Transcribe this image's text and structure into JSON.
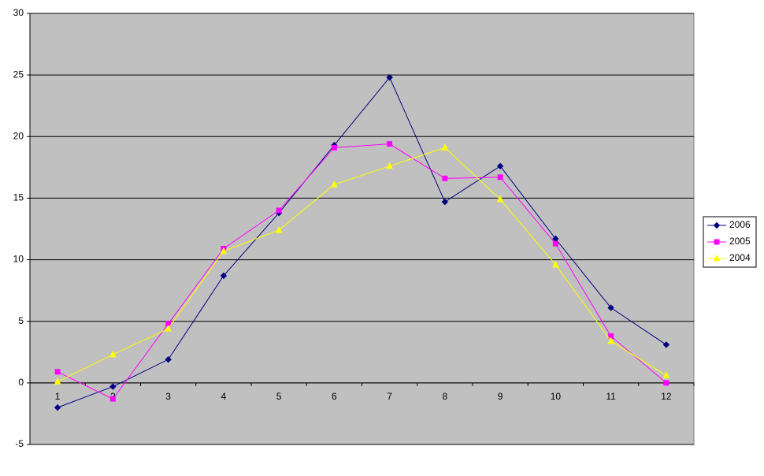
{
  "chart_data": {
    "type": "line",
    "categories": [
      "1",
      "2",
      "3",
      "4",
      "5",
      "6",
      "7",
      "8",
      "9",
      "10",
      "11",
      "12"
    ],
    "series": [
      {
        "name": "2006",
        "color": "#000080",
        "marker": "diamond",
        "values": [
          -2.0,
          -0.3,
          1.9,
          8.7,
          13.8,
          19.3,
          24.8,
          14.7,
          17.6,
          11.7,
          6.1,
          3.1
        ]
      },
      {
        "name": "2005",
        "color": "#ff00ff",
        "marker": "square",
        "values": [
          0.9,
          -1.3,
          4.8,
          10.9,
          14.0,
          19.1,
          19.4,
          16.6,
          16.7,
          11.3,
          3.8,
          0.0
        ]
      },
      {
        "name": "2004",
        "color": "#ffff00",
        "marker": "triangle",
        "values": [
          0.1,
          2.3,
          4.4,
          10.7,
          12.4,
          16.1,
          17.6,
          19.1,
          14.9,
          9.6,
          3.4,
          0.6
        ]
      }
    ],
    "ylim": [
      -5,
      30
    ],
    "yticks": [
      -5,
      0,
      5,
      10,
      15,
      20,
      25,
      30
    ],
    "grid": true,
    "legend": "right",
    "plot_background": "#c0c0c0"
  }
}
